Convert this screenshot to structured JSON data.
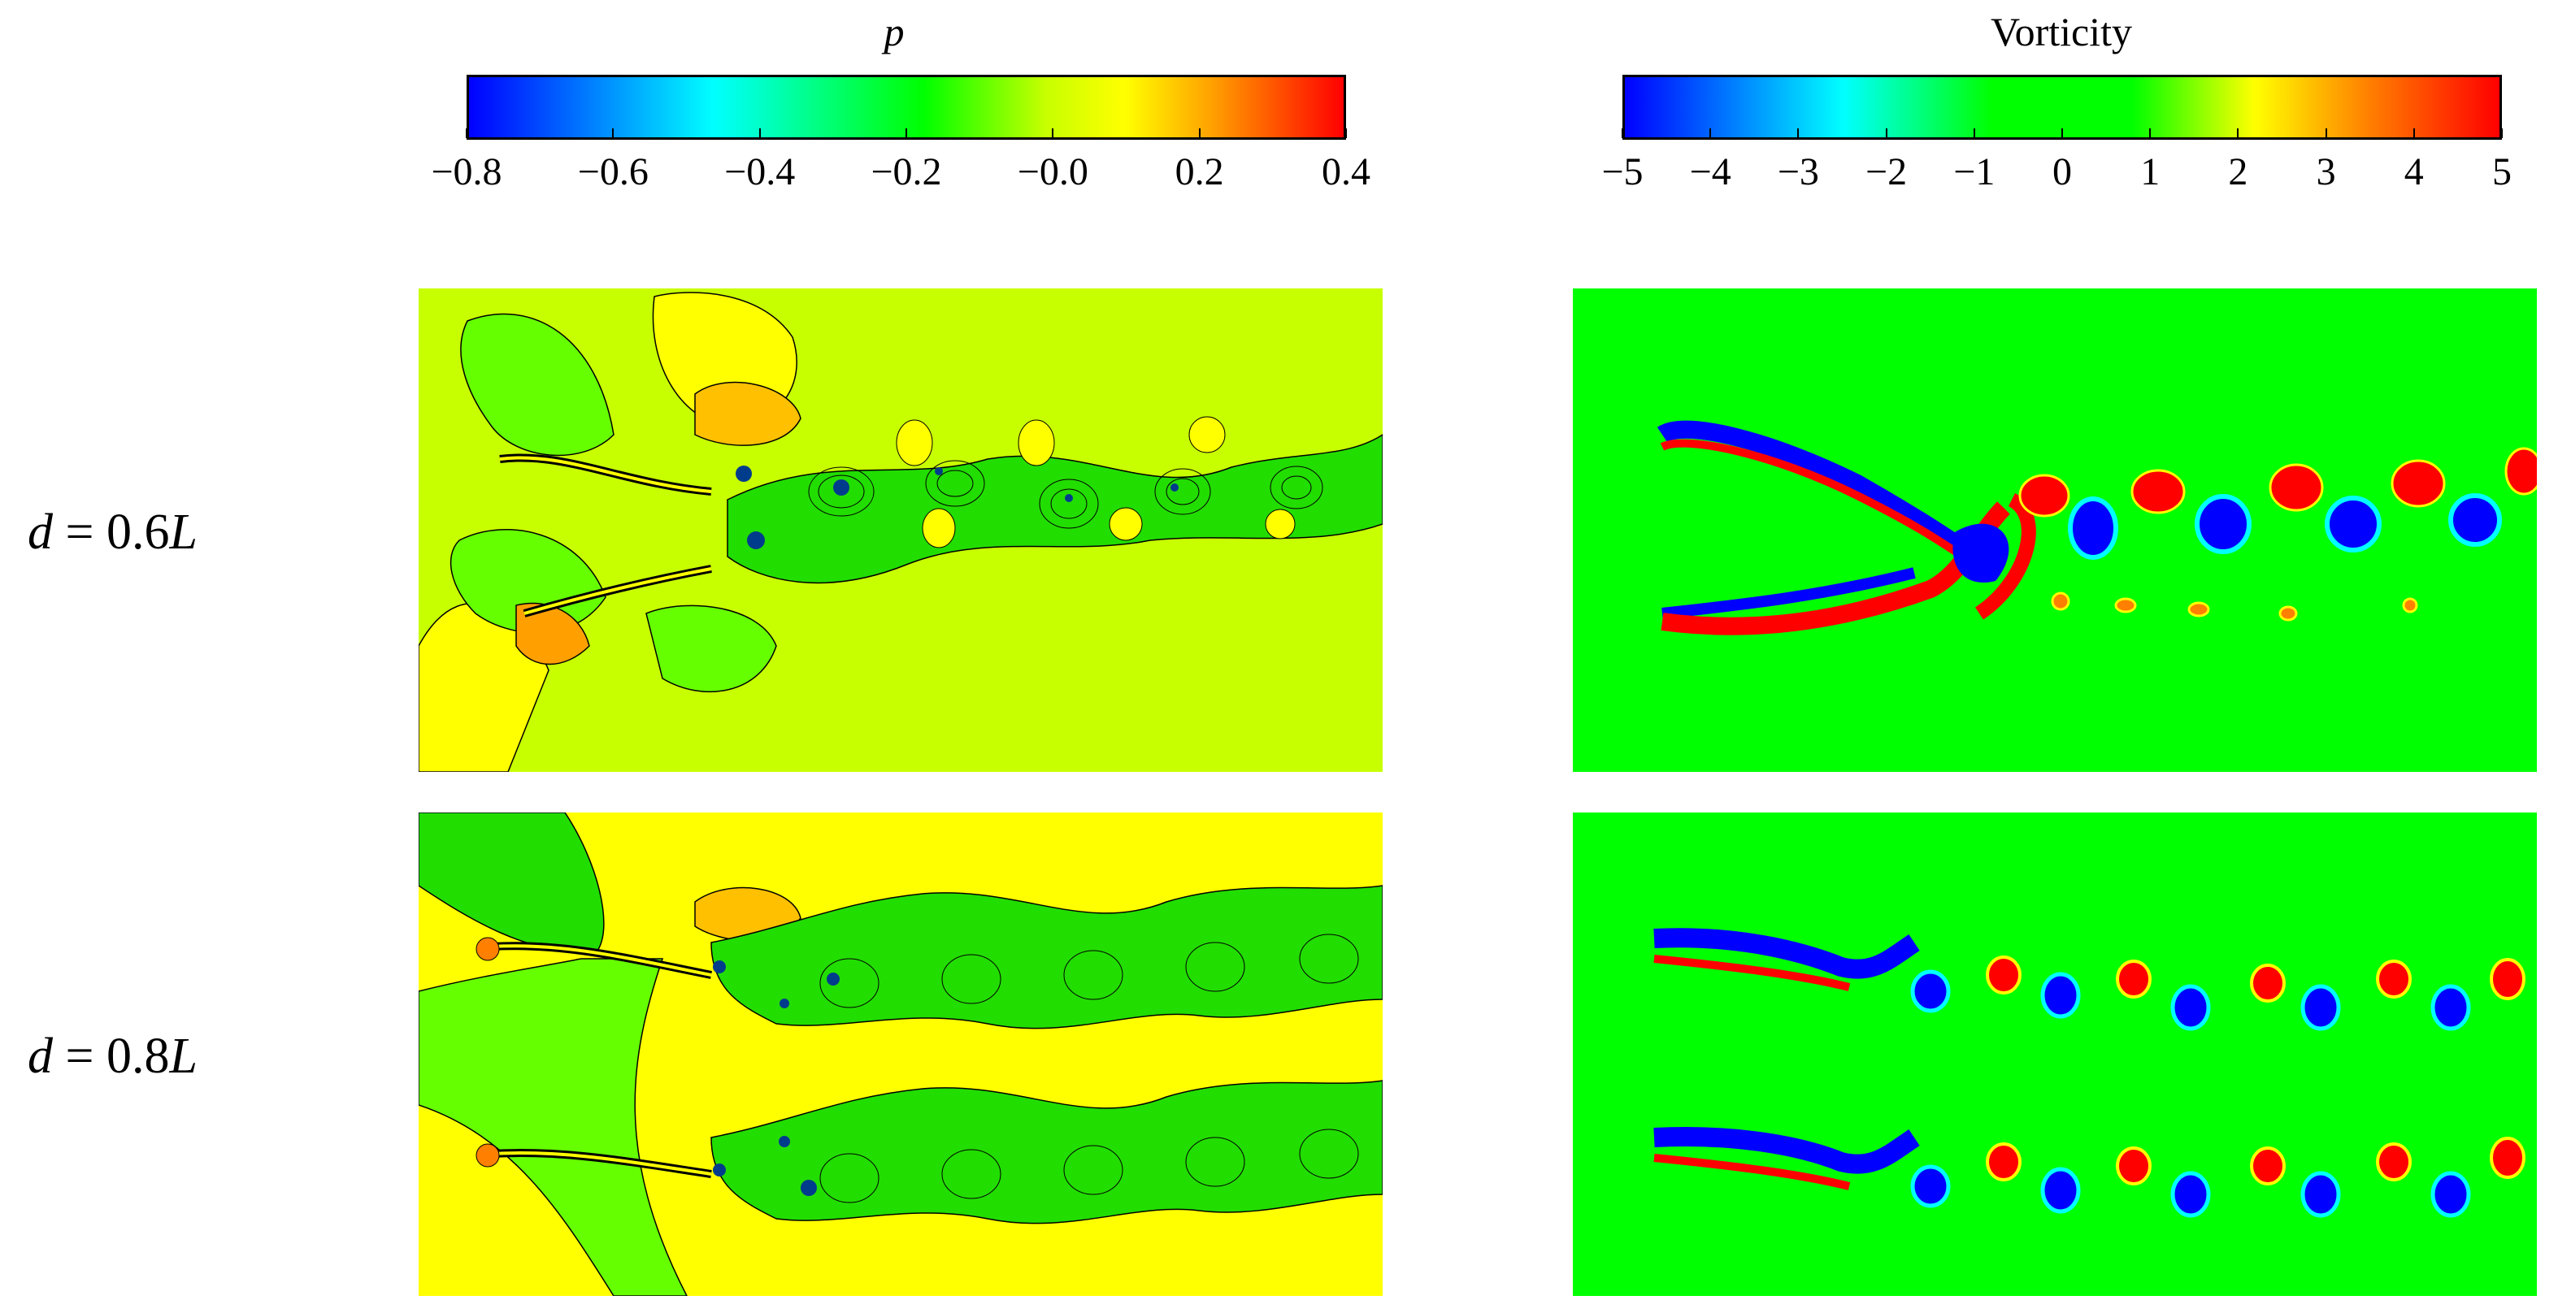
{
  "colorbars": {
    "pressure": {
      "title": "p",
      "ticks": [
        "−0.8",
        "−0.6",
        "−0.4",
        "−0.2",
        "−0.0",
        "0.2",
        "0.4"
      ],
      "colors": [
        "#0000ff",
        "#00ffff",
        "#00ff00",
        "#ffff00",
        "#ff0000"
      ]
    },
    "vorticity": {
      "title": "Vorticity",
      "ticks": [
        "−5",
        "−4",
        "−3",
        "−2",
        "−1",
        "0",
        "1",
        "2",
        "3",
        "4",
        "5"
      ],
      "colors": [
        "#0000ff",
        "#00ffff",
        "#00ff00",
        "#ffff00",
        "#ff0000"
      ]
    }
  },
  "rows": [
    {
      "label_var": "d",
      "label_eq": " = 0.6",
      "label_unit": "L"
    },
    {
      "label_var": "d",
      "label_eq": " = 0.8",
      "label_unit": "L"
    }
  ],
  "panel_colors": {
    "pressure_background_row1": "#c8ff00",
    "pressure_background_row2": "#ffff00",
    "vorticity_background": "#00ff00"
  }
}
